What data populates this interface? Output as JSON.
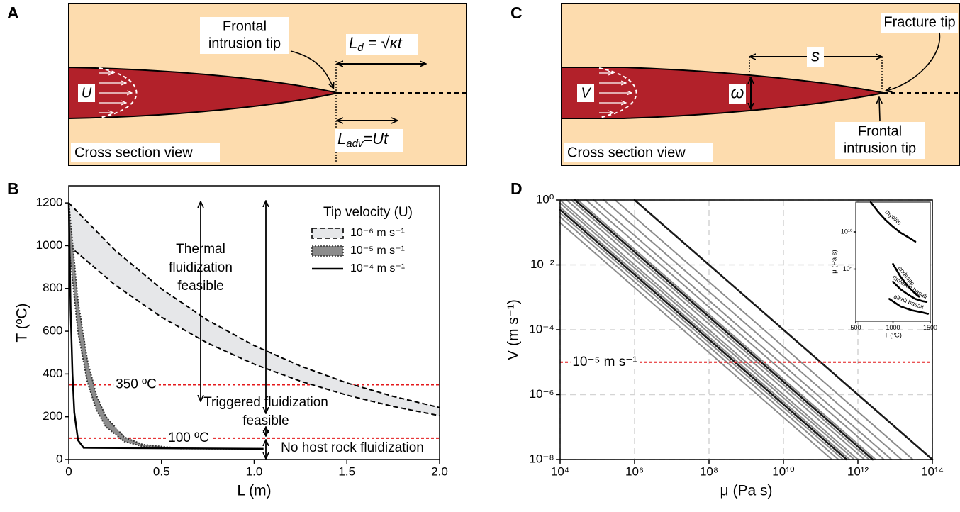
{
  "panels": {
    "a": "A",
    "b": "B",
    "c": "C",
    "d": "D"
  },
  "diagram_a": {
    "velocity": "U",
    "tip_label": [
      "Frontal",
      "intrusion tip"
    ],
    "diffusion_length": {
      "base": "L",
      "sub": "d",
      "rest": " = √κt"
    },
    "advection_length": {
      "base": "L",
      "sub": "adv",
      "rest": "=Ut"
    },
    "view": "Cross section view"
  },
  "diagram_c": {
    "velocity": "V",
    "fracture_tip": "Fracture tip",
    "distance": "s",
    "width": "ω",
    "tip_label": [
      "Frontal",
      "intrusion tip"
    ],
    "view": "Cross section view"
  },
  "chart_data": [
    {
      "type": "band",
      "xlabel": "L (m)",
      "ylabel": "T (ºC)",
      "xlim": [
        0,
        2
      ],
      "ylim": [
        0,
        1280
      ],
      "xticks": [
        0,
        0.5,
        {
          "value": 1,
          "label": "1.0"
        },
        1.5,
        {
          "value": 2,
          "label": "2.0"
        }
      ],
      "yticks": [
        0,
        200,
        400,
        600,
        800,
        1000,
        1200
      ],
      "legend_title": "Tip velocity (U)",
      "series": [
        {
          "name": "10⁻⁶ m s⁻¹",
          "color": "#000000",
          "fill": "#e6e7e9",
          "dash": "dashed",
          "x": [
            0,
            0.25,
            0.5,
            0.75,
            1,
            1.25,
            1.5,
            1.75,
            2
          ],
          "values": [
            1200,
            978,
            798,
            651,
            533,
            437,
            358,
            295,
            243
          ],
          "lower": [
            1000,
            816,
            666,
            544,
            446,
            366,
            301,
            248,
            205
          ]
        },
        {
          "name": "10⁻⁵ m s⁻¹",
          "color": "#333333",
          "fill": "#8c8c8c",
          "dash": "dotted",
          "x": [
            0,
            0.05,
            0.1,
            0.15,
            0.2,
            0.3,
            0.4,
            0.6,
            1.05
          ],
          "values": [
            1200,
            740,
            464,
            298,
            200,
            104,
            70,
            52,
            50
          ],
          "lower": [
            1000,
            595,
            363,
            230,
            153,
            84,
            61,
            51,
            50
          ]
        },
        {
          "name": "10⁻⁴ m s⁻¹",
          "color": "#000000",
          "dash": "solid",
          "x": [
            0,
            0.01,
            0.02,
            0.03,
            0.05,
            0.08,
            1.05
          ],
          "values": [
            1200,
            700,
            400,
            220,
            90,
            55,
            50
          ]
        }
      ],
      "reference_lines": [
        {
          "value": 350,
          "label": "350 ºC"
        },
        {
          "value": 100,
          "label": "100 ºC"
        }
      ],
      "reference_color": "#e41a1c",
      "annotations": [
        {
          "lines": [
            "Thermal",
            "fluidization",
            "feasible"
          ]
        },
        {
          "lines": [
            "Triggered fluidization",
            "feasible"
          ]
        },
        {
          "lines": [
            "No host rock fluidization"
          ]
        }
      ]
    },
    {
      "type": "line",
      "xlabel": "μ (Pa s)",
      "ylabel": "V (m s⁻¹)",
      "xlog": true,
      "ylog": true,
      "grid": true,
      "xlim": [
        10000.0,
        100000000000000.0
      ],
      "ylim": [
        1e-08,
        1
      ],
      "xticks": [
        {
          "value": 10000.0,
          "label": "10⁴"
        },
        {
          "value": 1000000.0,
          "label": "10⁶"
        },
        {
          "value": 100000000.0,
          "label": "10⁸"
        },
        {
          "value": 10000000000.0,
          "label": "10¹⁰"
        },
        {
          "value": 1000000000000.0,
          "label": "10¹²"
        },
        {
          "value": 100000000000000.0,
          "label": "10¹⁴"
        }
      ],
      "yticks": [
        {
          "value": 1e-08,
          "label": "10⁻⁸"
        },
        {
          "value": 1e-06,
          "label": "10⁻⁶"
        },
        {
          "value": 0.0001,
          "label": "10⁻⁴"
        },
        {
          "value": 0.01,
          "label": "10⁻²"
        },
        {
          "value": 1,
          "label": "10⁰"
        }
      ],
      "series": [
        {
          "color": "#8c8c8c",
          "x": [
            10000.0,
            200000000000.0
          ],
          "values": [
            0.2,
            1e-08
          ]
        },
        {
          "color": "#8c8c8c",
          "x": [
            10000.0,
            300000000000.0
          ],
          "values": [
            0.3,
            1e-08
          ]
        },
        {
          "color": "#8c8c8c",
          "x": [
            10000.0,
            400000000000.0
          ],
          "values": [
            0.4,
            1e-08
          ]
        },
        {
          "color": "#8c8c8c",
          "x": [
            10000.0,
            600000000000.0
          ],
          "values": [
            0.6,
            1e-08
          ]
        },
        {
          "color": "#8c8c8c",
          "x": [
            10000.0,
            800000000000.0
          ],
          "values": [
            0.8,
            1e-08
          ]
        },
        {
          "color": "#8c8c8c",
          "x": [
            10000.0,
            1000000000000.0
          ],
          "values": [
            1,
            1e-08
          ]
        },
        {
          "color": "#8c8c8c",
          "x": [
            15000.0,
            1500000000000.0
          ],
          "values": [
            1,
            1e-08
          ]
        },
        {
          "color": "#8c8c8c",
          "x": [
            20000.0,
            2000000000000.0
          ],
          "values": [
            1,
            1e-08
          ]
        },
        {
          "color": "#8c8c8c",
          "x": [
            30000.0,
            3000000000000.0
          ],
          "values": [
            1,
            1e-08
          ]
        },
        {
          "color": "#8c8c8c",
          "x": [
            50000.0,
            5000000000000.0
          ],
          "values": [
            1,
            1e-08
          ]
        },
        {
          "color": "#8c8c8c",
          "x": [
            80000.0,
            8000000000000.0
          ],
          "values": [
            1,
            1e-08
          ]
        },
        {
          "color": "#8c8c8c",
          "x": [
            150000.0,
            15000000000000.0
          ],
          "values": [
            1,
            1e-08
          ]
        },
        {
          "color": "#8c8c8c",
          "x": [
            300000.0,
            30000000000000.0
          ],
          "values": [
            1,
            1e-08
          ]
        },
        {
          "color": "#1a1a1a",
          "x": [
            10000.0,
            500000000000.0
          ],
          "values": [
            0.5,
            1e-08
          ]
        },
        {
          "color": "#1a1a1a",
          "x": [
            25000.0,
            2500000000000.0
          ],
          "values": [
            1,
            1e-08
          ]
        },
        {
          "color": "#1a1a1a",
          "x": [
            1000000.0,
            100000000000000.0
          ],
          "values": [
            1,
            1e-08
          ]
        }
      ],
      "reference_lines": [
        {
          "value": 1e-05,
          "label": "10⁻⁵ m s⁻¹"
        }
      ],
      "reference_color": "#e41a1c",
      "inset": {
        "type": "line",
        "xlabel": "T (ºC)",
        "ylabel": "μ (Pa s)",
        "ylog": true,
        "xlim": [
          500,
          1500
        ],
        "ylim": [
          0.01,
          100000000000000.0
        ],
        "xticks": [
          500,
          1000,
          1500
        ],
        "yticks": [
          {
            "value": 100000.0,
            "label": "10⁵"
          },
          {
            "value": 10000000000.0,
            "label": "10¹⁰"
          }
        ],
        "series": [
          {
            "name": "rhyolite",
            "color": "#000000",
            "x": [
              700,
              800,
              900,
              1000,
              1100,
              1200,
              1300
            ],
            "values": [
              100000000000000.0,
              5000000000000.0,
              400000000000.0,
              50000000000.0,
              8000000000.0,
              2000000000.0,
              500000000.0
            ]
          },
          {
            "name": "andesite",
            "color": "#000000",
            "x": [
              1000,
              1100,
              1200,
              1300,
              1350
            ],
            "values": [
              500000.0,
              10000.0,
              500,
              50,
              20
            ]
          },
          {
            "name": "tholeiitic basalt",
            "color": "#000000",
            "x": [
              1000,
              1100,
              1200,
              1300,
              1400,
              1450
            ],
            "values": [
              2000,
              200,
              40,
              10,
              5,
              4
            ]
          },
          {
            "name": "alkali basalt",
            "color": "#000000",
            "x": [
              950,
              1100,
              1250,
              1400,
              1470
            ],
            "values": [
              10,
              1,
              0.3,
              0.15,
              0.1
            ]
          }
        ]
      }
    }
  ]
}
